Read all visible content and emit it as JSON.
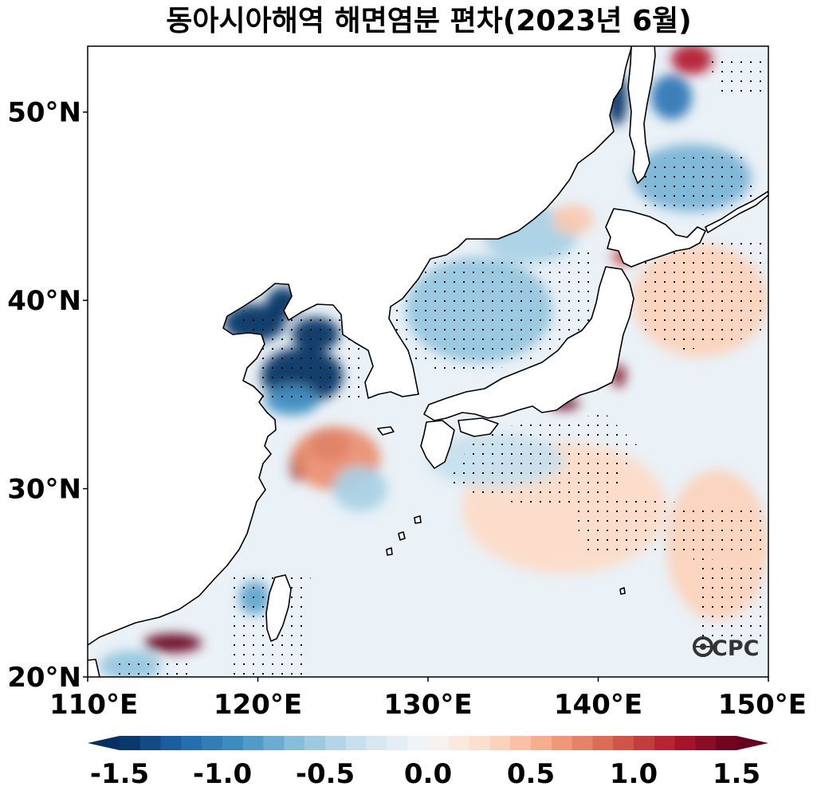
{
  "title": "동아시아해역 해면염분 편차(2023년 6월)",
  "logo_text": "CPC",
  "map": {
    "lon_range": [
      110,
      150
    ],
    "lat_range": [
      20,
      53.5
    ],
    "x_ticks": [
      {
        "lon": 110,
        "label": "110°E"
      },
      {
        "lon": 120,
        "label": "120°E"
      },
      {
        "lon": 130,
        "label": "130°E"
      },
      {
        "lon": 140,
        "label": "140°E"
      },
      {
        "lon": 150,
        "label": "150°E"
      }
    ],
    "y_ticks": [
      {
        "lat": 20,
        "label": "20°N"
      },
      {
        "lat": 30,
        "label": "30°N"
      },
      {
        "lat": 40,
        "label": "40°N"
      },
      {
        "lat": 50,
        "label": "50°N"
      }
    ],
    "ocean_color": "#eaf1f7",
    "anomalies": [
      {
        "name": "bohai-fresh",
        "lon": 119.8,
        "lat": 38.8,
        "rlon": 1.8,
        "rlat": 1.0,
        "value": -1.6
      },
      {
        "name": "liaodong-fresh",
        "lon": 121.5,
        "lat": 39.9,
        "rlon": 1.0,
        "rlat": 0.8,
        "value": -1.5
      },
      {
        "name": "yellow-sea-north-fresh",
        "lon": 123.4,
        "lat": 38.2,
        "rlon": 1.4,
        "rlat": 0.9,
        "value": -1.5
      },
      {
        "name": "yellow-sea-fresh",
        "lon": 122.6,
        "lat": 36.0,
        "rlon": 2.4,
        "rlat": 1.5,
        "value": -1.5
      },
      {
        "name": "yellow-sea-south-fresh",
        "lon": 122.0,
        "lat": 34.7,
        "rlon": 1.6,
        "rlat": 0.8,
        "value": -0.9
      },
      {
        "name": "east-china-sea-salty",
        "lon": 124.2,
        "lat": 32.3,
        "rlon": 1.2,
        "rlat": 0.9,
        "value": 1.6
      },
      {
        "name": "changjiang-salty",
        "lon": 122.4,
        "lat": 31.3,
        "rlon": 0.5,
        "rlat": 0.9,
        "value": 1.5
      },
      {
        "name": "ecs-salty-wide",
        "lon": 124.6,
        "lat": 31.6,
        "rlon": 2.6,
        "rlat": 1.7,
        "value": 0.7
      },
      {
        "name": "ecs-fresh-patch",
        "lon": 126.0,
        "lat": 30.0,
        "rlon": 1.6,
        "rlat": 1.2,
        "value": -0.5
      },
      {
        "name": "taiwan-strait-fresh",
        "lon": 119.8,
        "lat": 24.2,
        "rlon": 0.9,
        "rlat": 0.9,
        "value": -0.8
      },
      {
        "name": "s-china-salty",
        "lon": 115.0,
        "lat": 21.8,
        "rlon": 1.7,
        "rlat": 0.5,
        "value": 1.6
      },
      {
        "name": "s-china-fresh",
        "lon": 112.5,
        "lat": 20.6,
        "rlon": 1.8,
        "rlat": 0.8,
        "value": -0.6
      },
      {
        "name": "east-sea-fresh",
        "lon": 133.0,
        "lat": 39.5,
        "rlon": 4.3,
        "rlat": 2.8,
        "value": -0.6
      },
      {
        "name": "east-sea-north-fresh",
        "lon": 136.0,
        "lat": 43.5,
        "rlon": 2.8,
        "rlat": 1.5,
        "value": -0.5
      },
      {
        "name": "east-sea-east-salty",
        "lon": 138.5,
        "lat": 44.3,
        "rlon": 1.2,
        "rlat": 0.8,
        "value": 0.4
      },
      {
        "name": "sakhalin-fresh",
        "lon": 141.1,
        "lat": 50.7,
        "rlon": 0.6,
        "rlat": 1.4,
        "value": -1.5
      },
      {
        "name": "okhotsk-fresh",
        "lon": 145.5,
        "lat": 46.5,
        "rlon": 3.5,
        "rlat": 1.8,
        "value": -0.7
      },
      {
        "name": "okhotsk-north-fresh",
        "lon": 144.3,
        "lat": 50.8,
        "rlon": 1.2,
        "rlat": 1.2,
        "value": -1.1
      },
      {
        "name": "okhotsk-salty",
        "lon": 145.5,
        "lat": 52.8,
        "rlon": 1.2,
        "rlat": 0.8,
        "value": 1.2
      },
      {
        "name": "tohoku-salty",
        "lon": 141.2,
        "lat": 36.0,
        "rlon": 0.4,
        "rlat": 0.6,
        "value": 1.4
      },
      {
        "name": "tsugaru-salty",
        "lon": 141.5,
        "lat": 42.3,
        "rlon": 0.7,
        "rlat": 0.4,
        "value": 1.0
      },
      {
        "name": "kuroshio-salty",
        "lon": 138.0,
        "lat": 34.5,
        "rlon": 0.9,
        "rlat": 0.3,
        "value": 1.5
      },
      {
        "name": "nw-pacific-salty",
        "lon": 146.0,
        "lat": 40.0,
        "rlon": 4.0,
        "rlat": 3.0,
        "value": 0.35
      },
      {
        "name": "pacific-south-salty",
        "lon": 138.0,
        "lat": 29.0,
        "rlon": 6.0,
        "rlat": 3.5,
        "value": 0.3
      },
      {
        "name": "pacific-east-salty",
        "lon": 147.0,
        "lat": 27.0,
        "rlon": 3.0,
        "rlat": 4.0,
        "value": 0.35
      },
      {
        "name": "philippine-sea-fresh",
        "lon": 134.0,
        "lat": 31.5,
        "rlon": 4.0,
        "rlat": 1.4,
        "value": -0.35
      }
    ]
  },
  "colorbar": {
    "min": -1.5,
    "max": 1.5,
    "ticks": [
      {
        "value": -1.5,
        "label": "-1.5"
      },
      {
        "value": -1.0,
        "label": "-1.0"
      },
      {
        "value": -0.5,
        "label": "-0.5"
      },
      {
        "value": 0.0,
        "label": "0.0"
      },
      {
        "value": 0.5,
        "label": "0.5"
      },
      {
        "value": 1.0,
        "label": "1.0"
      },
      {
        "value": 1.5,
        "label": "1.5"
      }
    ],
    "colors": [
      "#053061",
      "#2166ac",
      "#4393c3",
      "#92c5de",
      "#d1e5f0",
      "#f7f7f7",
      "#fddbc7",
      "#f4a582",
      "#d6604d",
      "#b2182b",
      "#67001f"
    ]
  }
}
